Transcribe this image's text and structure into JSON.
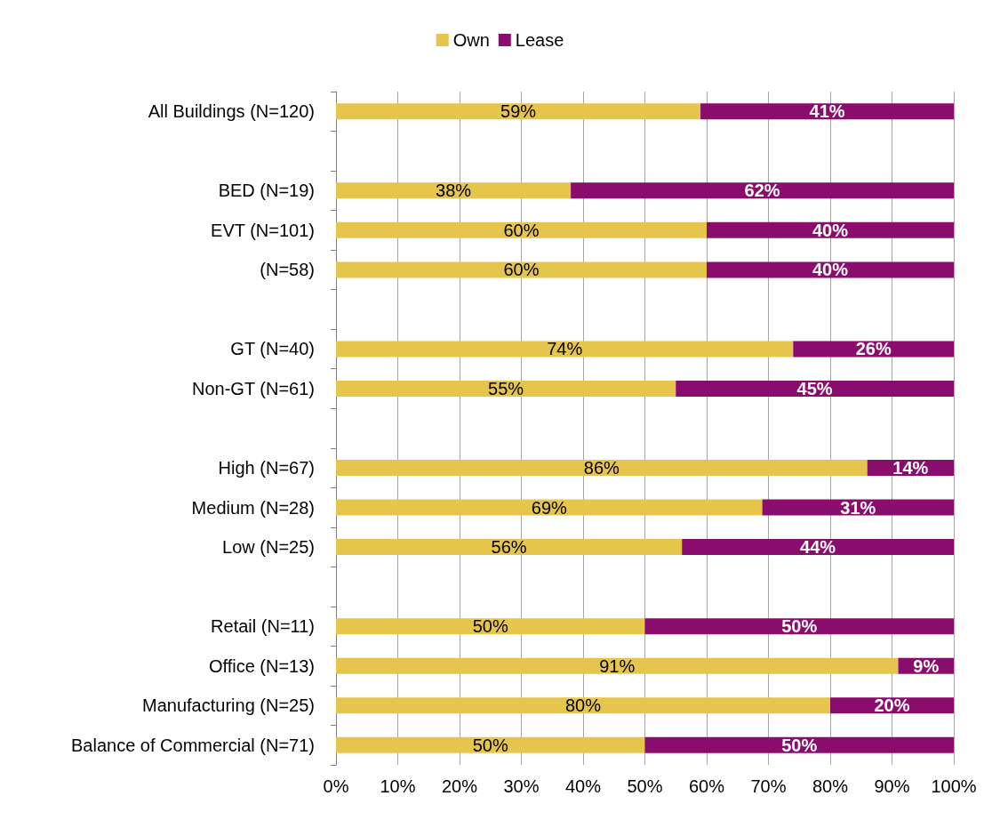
{
  "chart_data": {
    "type": "bar",
    "orientation": "horizontal",
    "stacked": true,
    "categories": [
      "All Buildings (N=120)",
      null,
      "BED (N=19)",
      "EVT (N=101)",
      "(N=58)",
      null,
      "GT (N=40)",
      "Non-GT (N=61)",
      null,
      "High (N=67)",
      "Medium (N=28)",
      "Low (N=25)",
      null,
      "Retail (N=11)",
      "Office (N=13)",
      "Manufacturing (N=25)",
      "Balance of Commercial (N=71)"
    ],
    "series": [
      {
        "name": "Own",
        "color": "#e6c54c",
        "values": [
          59,
          null,
          38,
          60,
          60,
          null,
          74,
          55,
          null,
          86,
          69,
          56,
          null,
          50,
          91,
          80,
          50
        ],
        "value_labels": [
          "59%",
          null,
          "38%",
          "60%",
          "60%",
          null,
          "74%",
          "55%",
          null,
          "86%",
          "69%",
          "56%",
          null,
          "50%",
          "91%",
          "80%",
          "50%"
        ]
      },
      {
        "name": "Lease",
        "color": "#8a0d6e",
        "values": [
          41,
          null,
          62,
          40,
          40,
          null,
          26,
          45,
          null,
          14,
          31,
          44,
          null,
          50,
          9,
          20,
          50
        ],
        "value_labels": [
          "41%",
          null,
          "62%",
          "40%",
          "40%",
          null,
          "26%",
          "45%",
          null,
          "14%",
          "31%",
          "44%",
          null,
          "50%",
          "9%",
          "20%",
          "50%"
        ]
      }
    ],
    "xlim": [
      0,
      100
    ],
    "xticks": [
      {
        "value": 0,
        "label": "0%"
      },
      {
        "value": 10,
        "label": "10%"
      },
      {
        "value": 20,
        "label": "20%"
      },
      {
        "value": 30,
        "label": "30%"
      },
      {
        "value": 40,
        "label": "40%"
      },
      {
        "value": 50,
        "label": "50%"
      },
      {
        "value": 60,
        "label": "60%"
      },
      {
        "value": 70,
        "label": "70%"
      },
      {
        "value": 80,
        "label": "80%"
      },
      {
        "value": 90,
        "label": "90%"
      },
      {
        "value": 100,
        "label": "100%"
      }
    ],
    "grid": "x",
    "legend": "top"
  }
}
